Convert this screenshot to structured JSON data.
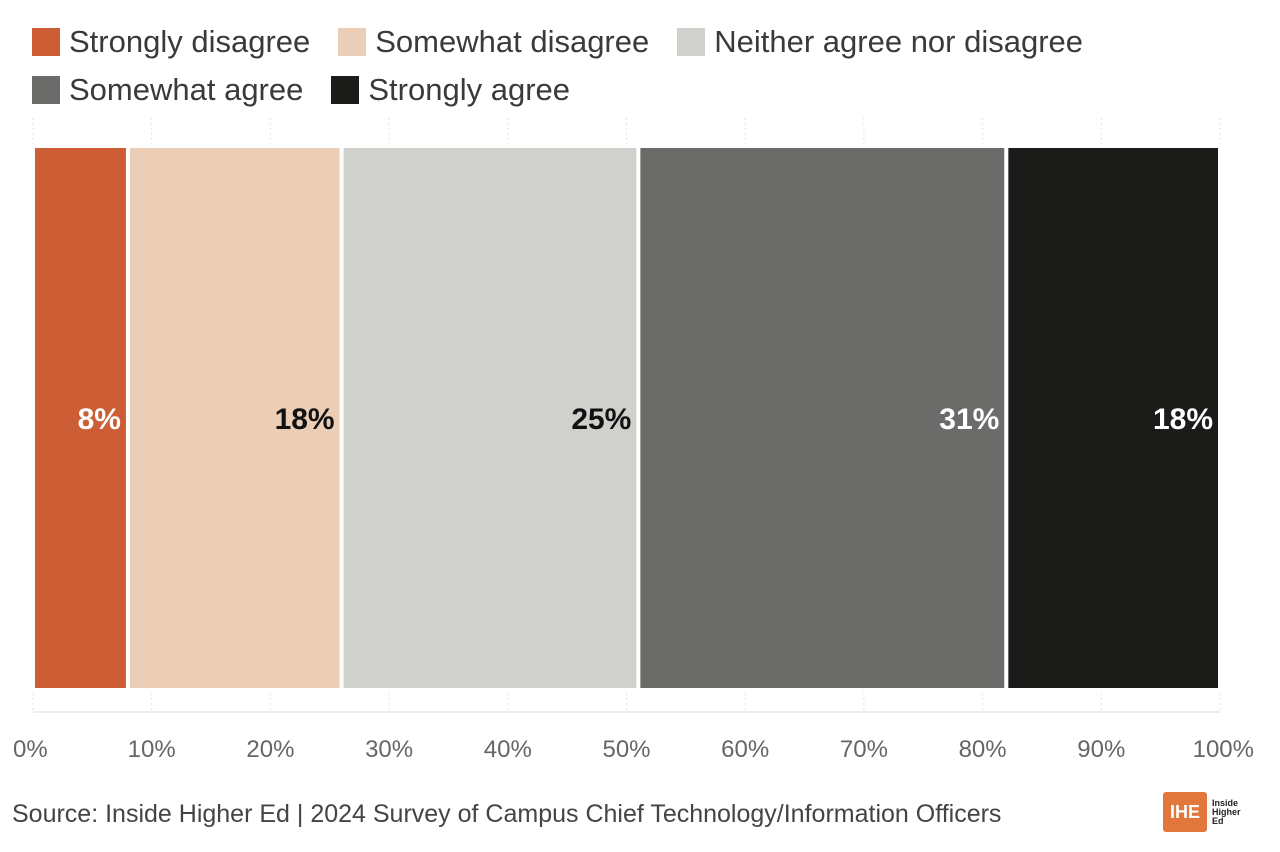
{
  "chart_data": {
    "type": "bar",
    "orientation": "horizontal-stacked",
    "categories": [
      "Strongly disagree",
      "Somewhat disagree",
      "Neither agree nor disagree",
      "Somewhat agree",
      "Strongly agree"
    ],
    "values": [
      8,
      18,
      25,
      31,
      18
    ],
    "value_labels": [
      "8%",
      "18%",
      "25%",
      "31%",
      "18%"
    ],
    "colors": [
      "#cc5d34",
      "#eccdb6",
      "#d0d0cd",
      "#6b6c69",
      "#1b1c1a"
    ],
    "label_colors": [
      "#ffffff",
      "#111111",
      "#111111",
      "#ffffff",
      "#ffffff"
    ],
    "xlim": [
      0,
      100
    ],
    "xticks": [
      0,
      10,
      20,
      30,
      40,
      50,
      60,
      70,
      80,
      90,
      100
    ],
    "xtick_labels": [
      "0%",
      "10%",
      "20%",
      "30%",
      "40%",
      "50%",
      "60%",
      "70%",
      "80%",
      "90%",
      "100%"
    ],
    "grid": true,
    "legend_position": "top-left"
  },
  "legend": {
    "rows": [
      [
        {
          "label": "Strongly disagree",
          "color": "#cc5d34"
        },
        {
          "label": "Somewhat disagree",
          "color": "#eccdb6"
        },
        {
          "label": "Neither agree nor disagree",
          "color": "#d0d0cd"
        }
      ],
      [
        {
          "label": "Somewhat agree",
          "color": "#6b6c69"
        },
        {
          "label": "Strongly agree",
          "color": "#1b1c1a"
        }
      ]
    ]
  },
  "source": "Source: Inside Higher Ed | 2024 Survey of Campus Chief Technology/Information Officers",
  "logo": {
    "mark": "IHE",
    "line1": "Inside",
    "line2": "Higher",
    "line3": "Ed"
  }
}
